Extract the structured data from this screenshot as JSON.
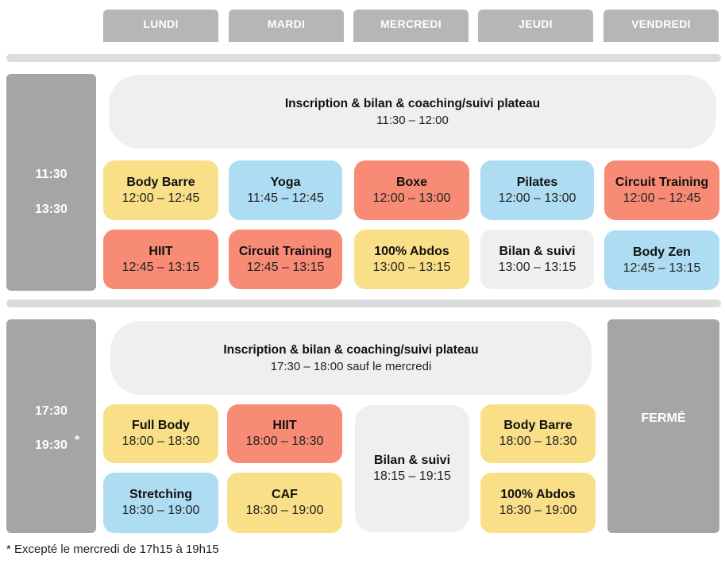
{
  "days": [
    "LUNDI",
    "MARDI",
    "MERCREDI",
    "JEUDI",
    "VENDREDI"
  ],
  "midday": {
    "start": "11:30",
    "end": "13:30",
    "banner": {
      "title": "Inscription & bilan & coaching/suivi plateau",
      "time": "11:30 – 12:00"
    },
    "row1": [
      {
        "name": "Body Barre",
        "time": "12:00 – 12:45",
        "color": "#f9df88"
      },
      {
        "name": "Yoga",
        "time": "11:45 – 12:45",
        "color": "#aedcf2"
      },
      {
        "name": "Boxe",
        "time": "12:00 – 13:00",
        "color": "#f78b75"
      },
      {
        "name": "Pilates",
        "time": "12:00 – 13:00",
        "color": "#aedcf2"
      },
      {
        "name": "Circuit Training",
        "time": "12:00 – 12:45",
        "color": "#f78b75"
      }
    ],
    "row2": [
      {
        "name": "HIIT",
        "time": "12:45 – 13:15",
        "color": "#f78b75"
      },
      {
        "name": "Circuit Training",
        "time": "12:45 – 13:15",
        "color": "#f78b75"
      },
      {
        "name": "100% Abdos",
        "time": "13:00 – 13:15",
        "color": "#f9df88"
      },
      {
        "name": "Bilan & suivi",
        "time": "13:00 – 13:15",
        "color": "#efefef"
      },
      {
        "name": "Body  Zen",
        "time": "12:45 – 13:15",
        "color": "#aedcf2"
      }
    ]
  },
  "evening": {
    "start": "17:30",
    "end": "19:30",
    "star": "*",
    "banner": {
      "title": "Inscription & bilan & coaching/suivi plateau",
      "time": "17:30 – 18:00 sauf le mercredi"
    },
    "monday": [
      {
        "name": "Full Body",
        "time": "18:00 – 18:30",
        "color": "#f9df88"
      },
      {
        "name": "Stretching",
        "time": "18:30 – 19:00",
        "color": "#aedcf2"
      }
    ],
    "tuesday": [
      {
        "name": "HIIT",
        "time": "18:00 – 18:30",
        "color": "#f78b75"
      },
      {
        "name": "CAF",
        "time": "18:30 – 19:00",
        "color": "#f9df88"
      }
    ],
    "wednesday": {
      "name": "Bilan & suivi",
      "time": "18:15 – 19:15",
      "color": "#efefef"
    },
    "thursday": [
      {
        "name": "Body Barre",
        "time": "18:00 – 18:30",
        "color": "#f9df88"
      },
      {
        "name": "100% Abdos",
        "time": "18:30 – 19:00",
        "color": "#f9df88"
      }
    ],
    "friday": "FERMÉ"
  },
  "footnote": "* Excepté le mercredi de 17h15 à 19h15"
}
